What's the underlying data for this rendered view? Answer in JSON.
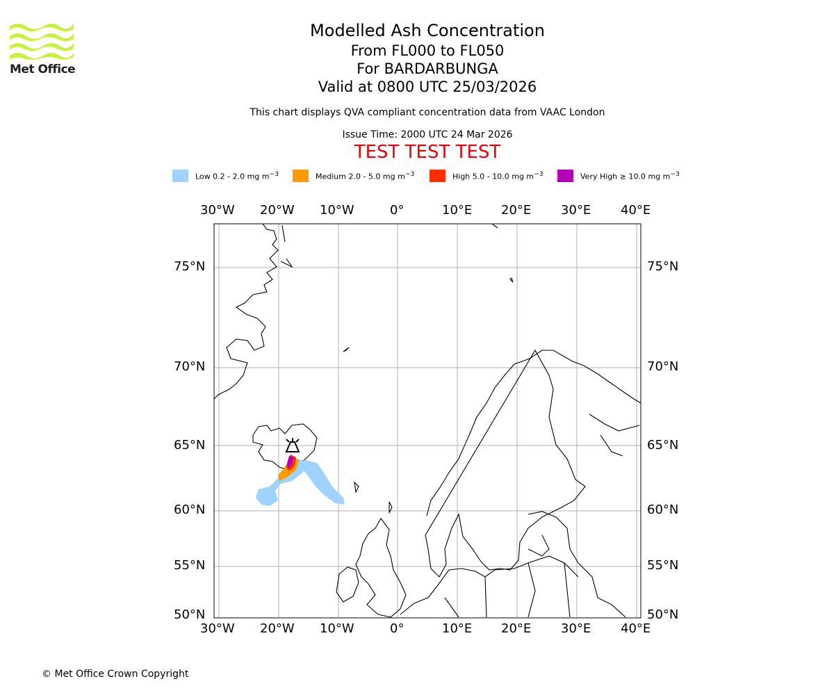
{
  "brand": {
    "name": "Met Office",
    "logo_color": "#c6f23c"
  },
  "title": {
    "main": "Modelled Ash Concentration",
    "levels": "From FL000 to FL050",
    "volcano": "For BARDARBUNGA",
    "valid": "Valid at 0800 UTC 25/03/2026"
  },
  "notes": {
    "compliance": "This chart displays QVA compliant concentration data from VAAC London",
    "issue": "Issue Time: 2000 UTC 24 Mar 2026",
    "test_banner": "TEST TEST TEST"
  },
  "legend": [
    {
      "label": "Low 0.2 - 2.0 mg m",
      "sup": "−3",
      "color": "#9fd2ff"
    },
    {
      "label": "Medium 2.0 - 5.0 mg m",
      "sup": "−3",
      "color": "#ff9b00"
    },
    {
      "label": "High 5.0 - 10.0 mg m",
      "sup": "−3",
      "color": "#ff2d00"
    },
    {
      "label": "Very High  ≥  10.0 mg m",
      "sup": "−3",
      "color": "#b400b4"
    }
  ],
  "map": {
    "lon_labels": [
      "30°W",
      "20°W",
      "10°W",
      "0°",
      "10°E",
      "20°E",
      "30°E",
      "40°E"
    ],
    "lat_labels": [
      "75°N",
      "70°N",
      "65°N",
      "60°N",
      "55°N",
      "50°N"
    ],
    "volcano_icon": "volcano-icon",
    "colors": {
      "grid": "#b0b0b0",
      "coast": "#000000"
    }
  },
  "footer": {
    "copyright": "© Met Office Crown Copyright"
  }
}
